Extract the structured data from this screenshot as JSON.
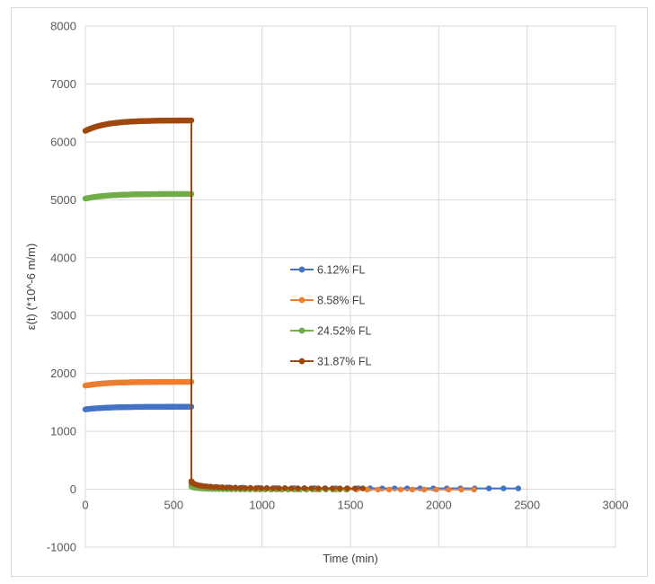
{
  "chart_data": {
    "type": "scatter",
    "title": "",
    "xlabel": "Time (min)",
    "ylabel": "ε(t) (*10^-6 m/m)",
    "xlim": [
      0,
      3000
    ],
    "ylim": [
      -1000,
      8000
    ],
    "x_ticks": [
      0,
      500,
      1000,
      1500,
      2000,
      2500,
      3000
    ],
    "y_ticks": [
      -1000,
      0,
      1000,
      2000,
      3000,
      4000,
      5000,
      6000,
      7000,
      8000
    ],
    "grid": true,
    "legend_position": "center",
    "series": [
      {
        "name": "6.12% FL",
        "color": "#4472C4",
        "loading": {
          "x_start": 0,
          "x_end": 600,
          "y_start": 1380,
          "y_end": 1425
        },
        "unloading": {
          "x_start": 600,
          "x_end": 2450,
          "y_start": 100,
          "y_end": 15
        }
      },
      {
        "name": "8.58% FL",
        "color": "#ED7D31",
        "loading": {
          "x_start": 0,
          "x_end": 600,
          "y_start": 1790,
          "y_end": 1855
        },
        "unloading": {
          "x_start": 600,
          "x_end": 2200,
          "y_start": 60,
          "y_end": -5
        }
      },
      {
        "name": "24.52% FL",
        "color": "#70AD47",
        "loading": {
          "x_start": 0,
          "x_end": 600,
          "y_start": 5020,
          "y_end": 5100
        },
        "unloading": {
          "x_start": 600,
          "x_end": 1480,
          "y_start": 50,
          "y_end": -5
        }
      },
      {
        "name": "31.87% FL",
        "color": "#9E480E",
        "loading": {
          "x_start": 0,
          "x_end": 600,
          "y_start": 6190,
          "y_end": 6370
        },
        "unloading": {
          "x_start": 600,
          "x_end": 1570,
          "y_start": 140,
          "y_end": 15
        }
      }
    ]
  }
}
